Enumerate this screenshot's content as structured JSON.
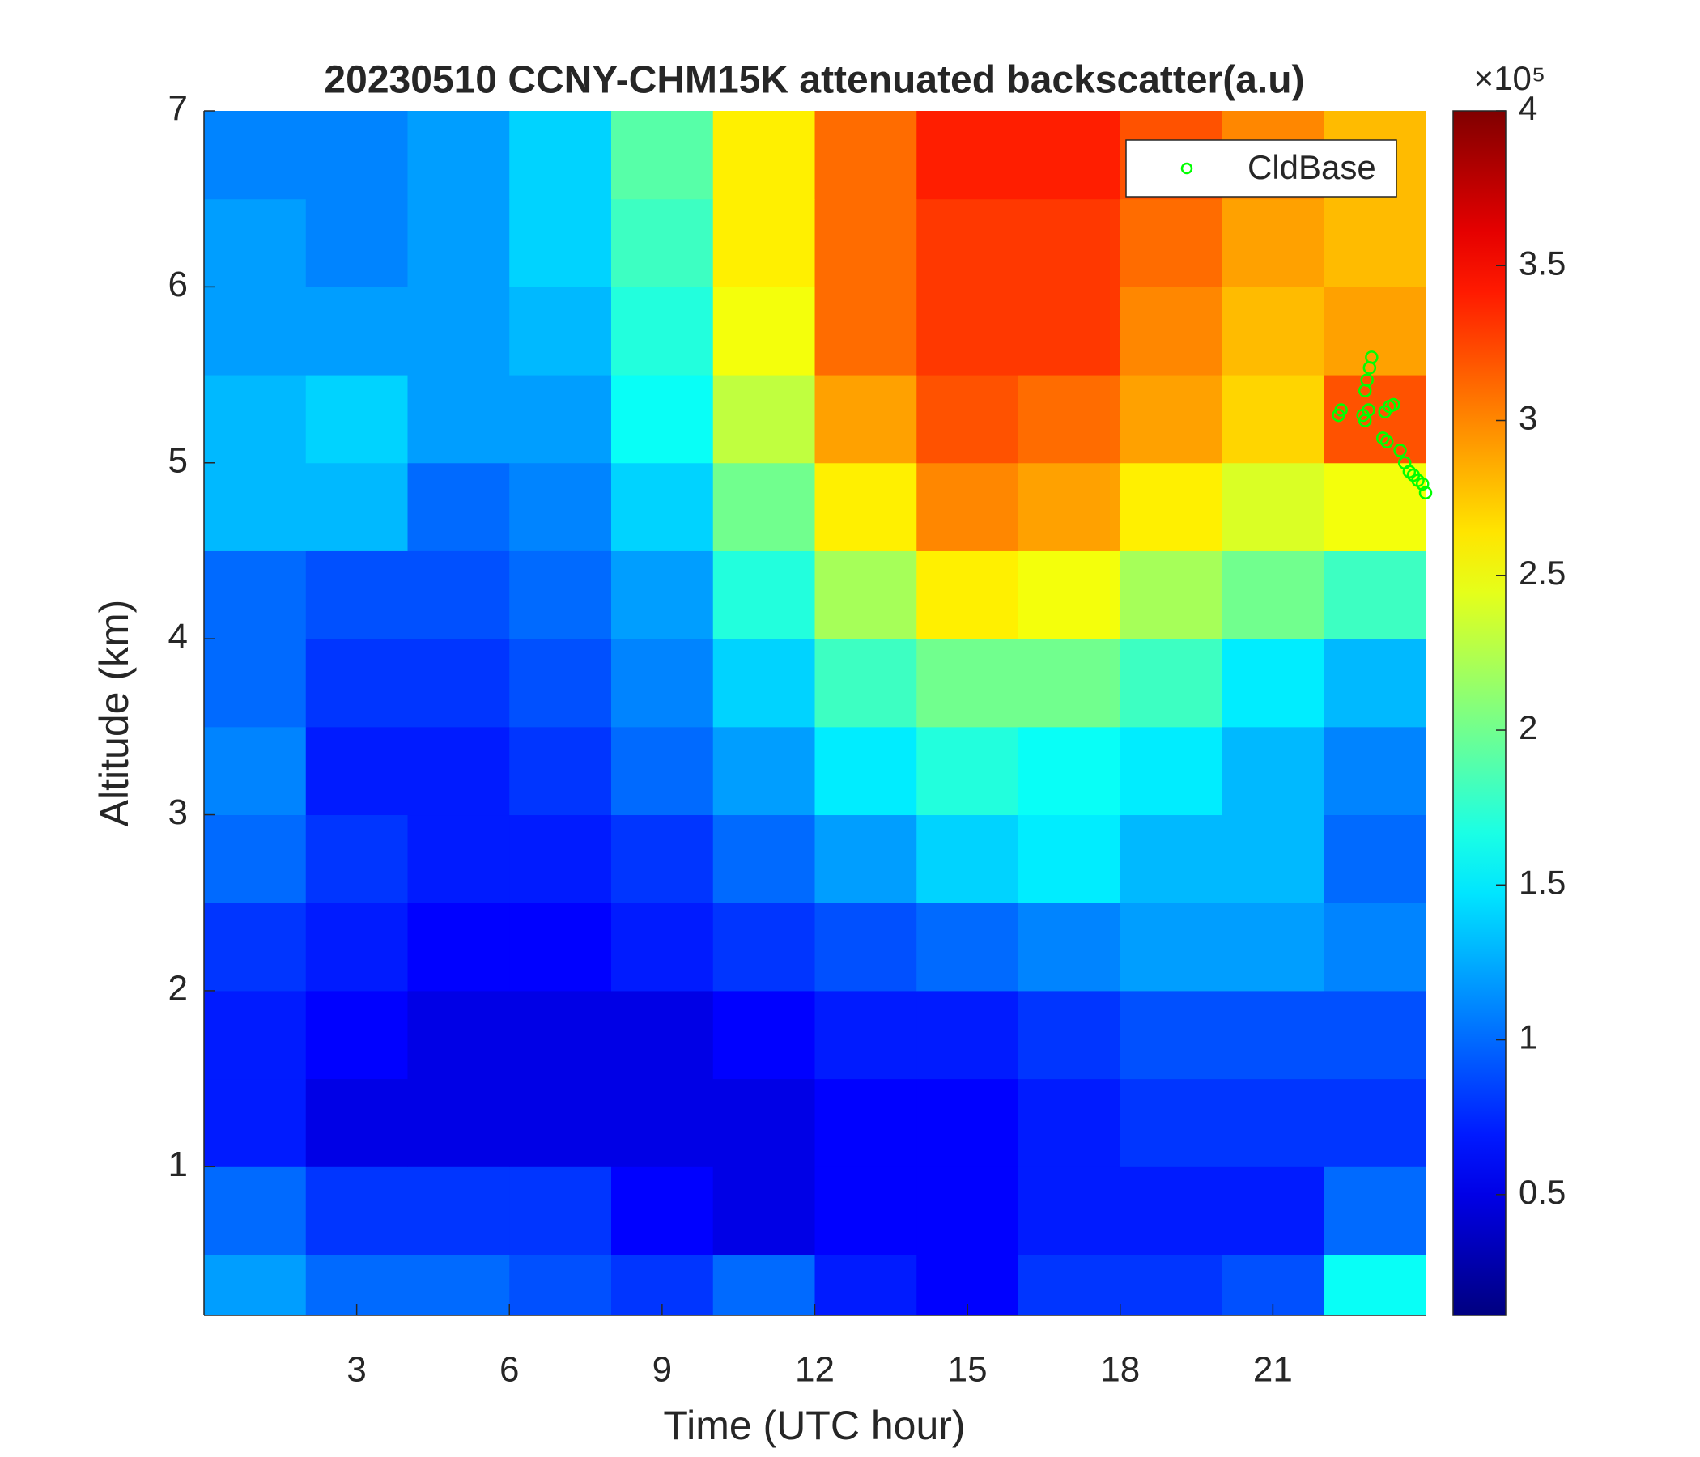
{
  "chart_data": {
    "type": "heatmap",
    "title": "20230510 CCNY-CHM15K attenuated backscatter(a.u)",
    "xlabel": "Time (UTC hour)",
    "ylabel": "Altitude (km)",
    "colormap": "jet",
    "x_edges": [
      0,
      2,
      4,
      6,
      8,
      10,
      12,
      14,
      16,
      18,
      20,
      22,
      24
    ],
    "y_edges": [
      0.155,
      0.5,
      1,
      1.5,
      2,
      2.5,
      3,
      3.5,
      4,
      4.5,
      5,
      5.5,
      6,
      6.5,
      7
    ],
    "z": [
      [
        1.2,
        1.0,
        1.0,
        0.9,
        0.8,
        1.0,
        0.7,
        0.6,
        0.8,
        0.8,
        0.9,
        1.6
      ],
      [
        1.0,
        0.8,
        0.8,
        0.8,
        0.6,
        0.5,
        0.6,
        0.6,
        0.7,
        0.7,
        0.7,
        1.0
      ],
      [
        0.7,
        0.5,
        0.5,
        0.5,
        0.5,
        0.5,
        0.6,
        0.6,
        0.7,
        0.8,
        0.8,
        0.8
      ],
      [
        0.7,
        0.6,
        0.5,
        0.5,
        0.5,
        0.6,
        0.7,
        0.7,
        0.8,
        0.9,
        0.9,
        0.9
      ],
      [
        0.8,
        0.7,
        0.6,
        0.6,
        0.7,
        0.8,
        0.9,
        1.0,
        1.1,
        1.2,
        1.2,
        1.1
      ],
      [
        1.0,
        0.8,
        0.7,
        0.7,
        0.8,
        1.0,
        1.2,
        1.4,
        1.5,
        1.3,
        1.3,
        1.0
      ],
      [
        1.1,
        0.7,
        0.7,
        0.8,
        1.0,
        1.2,
        1.5,
        1.7,
        1.6,
        1.5,
        1.3,
        1.1
      ],
      [
        1.0,
        0.8,
        0.8,
        0.9,
        1.1,
        1.4,
        1.8,
        2.0,
        2.0,
        1.8,
        1.5,
        1.3
      ],
      [
        1.0,
        0.9,
        0.9,
        1.0,
        1.2,
        1.7,
        2.2,
        2.6,
        2.5,
        2.2,
        2.0,
        1.8
      ],
      [
        1.3,
        1.3,
        1.0,
        1.1,
        1.4,
        2.0,
        2.6,
        3.0,
        2.9,
        2.6,
        2.4,
        2.5
      ],
      [
        1.3,
        1.4,
        1.2,
        1.2,
        1.6,
        2.3,
        2.9,
        3.2,
        3.1,
        2.9,
        2.7,
        3.2
      ],
      [
        1.2,
        1.2,
        1.2,
        1.3,
        1.7,
        2.5,
        3.1,
        3.3,
        3.3,
        3.0,
        2.8,
        2.9
      ],
      [
        1.2,
        1.1,
        1.2,
        1.4,
        1.8,
        2.6,
        3.1,
        3.3,
        3.3,
        3.1,
        2.9,
        2.8
      ],
      [
        1.1,
        1.1,
        1.2,
        1.4,
        1.9,
        2.6,
        3.1,
        3.4,
        3.4,
        3.2,
        3.0,
        2.8
      ]
    ],
    "xlim": [
      0,
      24
    ],
    "xticks": [
      3,
      6,
      9,
      12,
      15,
      18,
      21
    ],
    "ylim": [
      0.155,
      7
    ],
    "yticks": [
      1,
      2,
      3,
      4,
      5,
      6,
      7
    ],
    "clim": [
      0.11,
      4
    ],
    "cticks": [
      0.5,
      1,
      1.5,
      2,
      2.5,
      3,
      3.5,
      4
    ],
    "colorbar_scale_label": "×10⁵",
    "legend": "upper right",
    "series": [
      {
        "name": "CldBase",
        "type": "scatter",
        "color": "#00ff00",
        "x": [
          22.29,
          22.34,
          22.77,
          22.81,
          22.85,
          22.9,
          22.94,
          22.81,
          22.88,
          23.2,
          23.29,
          23.37,
          23.16,
          23.24,
          23.5,
          23.59,
          23.68,
          23.76,
          23.85,
          23.94,
          24.0
        ],
        "y": [
          5.27,
          5.3,
          5.27,
          5.41,
          5.47,
          5.54,
          5.6,
          5.24,
          5.3,
          5.29,
          5.32,
          5.33,
          5.14,
          5.12,
          5.07,
          5.0,
          4.95,
          4.93,
          4.9,
          4.88,
          4.83
        ]
      }
    ]
  }
}
